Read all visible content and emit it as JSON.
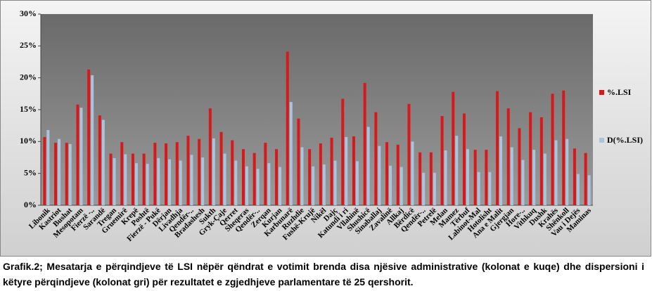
{
  "chart_data": {
    "type": "bar",
    "categories": [
      "Libonik",
      "Kastriot",
      "Bushat",
      "Mesopotam",
      "Fierzë -..",
      "Sarandë",
      "Tregan",
      "Gruemirë",
      "Krepë",
      "Poshtë",
      "Fierzë - Pukë",
      "Dërjan",
      "Livadhja",
      "Qendër-..",
      "Bradashesh",
      "Sukth",
      "Gryk-Çaje",
      "Qerret",
      "Sheqeras",
      "Qendër-..",
      "Zerqan",
      "Kurjan",
      "Karbunarë",
      "Ruzhdie",
      "Fushë-Krujë",
      "Nikël",
      "Dajç",
      "Katundi i ri",
      "Vllahinë",
      "Shushicë",
      "Sinaballaj",
      "Zavalinë",
      "Allkaj",
      "Bërdicë",
      "Qendër-..",
      "Petrelë",
      "Melan",
      "Mamez",
      "Tërbuf",
      "Labinot-Mal",
      "Hotolisht",
      "Ana e Malit",
      "Gjergjan",
      "Hore-..",
      "Vithkuq",
      "Dushk",
      "Krahës",
      "Shënkoll",
      "Vau i Dejës",
      "Maminas"
    ],
    "series": [
      {
        "name": "%.LSI",
        "color": "#d7191c",
        "values": [
          10.7,
          9.8,
          9.8,
          15.8,
          21.3,
          14.1,
          8.1,
          9.9,
          8.1,
          8.1,
          9.8,
          9.7,
          9.9,
          10.9,
          10.4,
          15.2,
          11.5,
          10.2,
          8.8,
          8.2,
          9.8,
          8.8,
          24.1,
          13.6,
          8.8,
          9.7,
          10.6,
          16.7,
          10.8,
          19.2,
          14.6,
          9.9,
          9.5,
          15.9,
          8.3,
          8.3,
          14.0,
          17.8,
          14.4,
          8.7,
          8.7,
          17.9,
          15.2,
          12.1,
          14.6,
          13.8,
          17.5,
          18.0,
          8.9,
          8.2
        ]
      },
      {
        "name": "D(%.LSI)",
        "color": "#a9c4dc",
        "values": [
          11.8,
          10.4,
          9.6,
          15.3,
          20.4,
          13.4,
          7.4,
          8.0,
          6.6,
          6.5,
          7.4,
          7.2,
          7.0,
          7.9,
          7.5,
          10.5,
          8.1,
          7.0,
          6.1,
          5.7,
          6.6,
          6.0,
          16.2,
          9.1,
          6.1,
          6.4,
          7.0,
          10.7,
          6.9,
          12.3,
          9.3,
          6.2,
          6.0,
          10.0,
          5.1,
          5.1,
          8.6,
          10.9,
          8.8,
          5.2,
          5.2,
          10.8,
          9.1,
          7.1,
          8.7,
          8.1,
          10.2,
          10.4,
          4.9,
          4.7
        ]
      }
    ],
    "ylim": [
      0,
      30
    ],
    "yticks": [
      {
        "value": 0,
        "label": "0%"
      },
      {
        "value": 5,
        "label": "5%"
      },
      {
        "value": 10,
        "label": "10%"
      },
      {
        "value": 15,
        "label": "15%"
      },
      {
        "value": 20,
        "label": "20%"
      },
      {
        "value": 25,
        "label": "25%"
      },
      {
        "value": 30,
        "label": "30%"
      }
    ],
    "grid": false,
    "legend": "right",
    "caption": "Grafik.2; Mesatarja e përqindjeve të LSI nëpër qëndrat e votimit brenda disa njësive administrative (kolonat e kuqe) dhe dispersioni i këtyre përqindjeve (kolonat gri) për rezultatet e zgjedhjeve parlamentare të 25 qershorit."
  }
}
